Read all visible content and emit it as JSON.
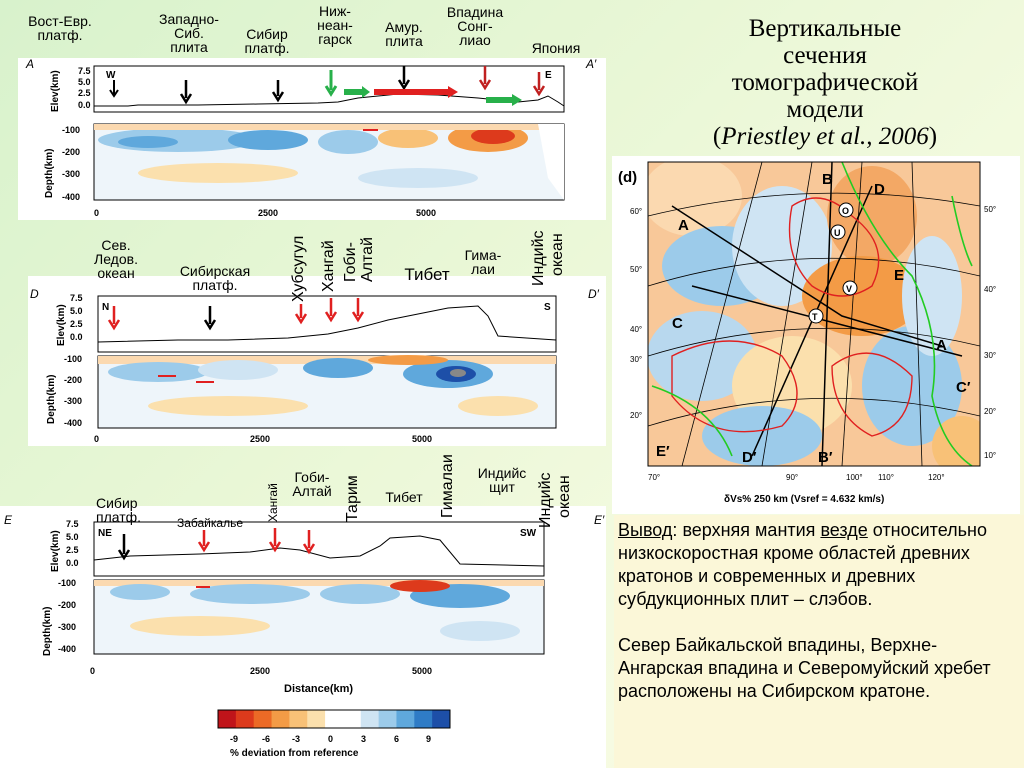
{
  "slide": {
    "title_line1": "Вертикальные",
    "title_line2": "сечения",
    "title_line3": "томографической",
    "title_line4": "модели",
    "title_cite": "Priestley et al., 2006"
  },
  "section_a": {
    "letter": "A",
    "letter_end": "A′",
    "dir_left": "W",
    "dir_right": "E",
    "labels": [
      "Вост-Евр.",
      "платф.",
      "Западно-",
      "Сиб.",
      "плита",
      "Сибир",
      "платф.",
      "Ниж-",
      "неан-",
      "гарск",
      "Амур.",
      "плита",
      "Впадина",
      "Сонг-",
      "лиао",
      "Япония"
    ]
  },
  "section_d": {
    "letter": "D",
    "letter_end": "D′",
    "dir_left": "N",
    "dir_right": "S",
    "labels": [
      "Сев.",
      "Ледов.",
      "океан",
      "Сибирская",
      "платф.",
      "Тибет",
      "Гима-",
      "лаи"
    ],
    "vertical_labels": [
      "Хубсугул",
      "Хангай",
      "Гоби-",
      "Алтай",
      "Индийс",
      "океан"
    ]
  },
  "section_e": {
    "letter": "E",
    "letter_end": "E′",
    "dir_left": "NE",
    "dir_right": "SW",
    "labels": [
      "Сибир",
      "платф.",
      "Забайкалье",
      "Гоби-",
      "Алтай",
      "Тибет",
      "Индийс",
      "щит"
    ],
    "vertical_labels": [
      "Хангай",
      "Тарим",
      "Гималаи",
      "Индийс",
      "океан"
    ]
  },
  "axes": {
    "elev_label": "Elev(km)",
    "depth_label": "Depth(km)",
    "distance_label": "Distance(km)",
    "elev_ticks": [
      "7.5",
      "5.0",
      "2.5",
      "0.0"
    ],
    "depth_ticks": [
      "-100",
      "-200",
      "-300",
      "-400"
    ],
    "distance_ticks": [
      "0",
      "2500",
      "5000"
    ]
  },
  "colorbar": {
    "ticks": [
      "-9",
      "-6",
      "-3",
      "0",
      "3",
      "6",
      "9"
    ],
    "label": "% deviation from reference",
    "colors": [
      "#c0141a",
      "#dd3a1c",
      "#ec6a26",
      "#f39b46",
      "#f8c177",
      "#fbe0ad",
      "#ffffff",
      "#ffffff",
      "#cfe4f3",
      "#9ccbea",
      "#5fa8dc",
      "#2f7cc6",
      "#1d4fa8"
    ]
  },
  "map": {
    "panel_letter": "(d)",
    "section_letters": [
      "A",
      "B",
      "D",
      "C",
      "E",
      "A",
      "C′",
      "E′",
      "D′",
      "B′"
    ],
    "station_letters": [
      "O",
      "U",
      "V",
      "T"
    ],
    "lat_ticks": [
      "60°",
      "50°",
      "40°",
      "30°",
      "20°"
    ],
    "lon_ticks": [
      "70°",
      "90°",
      "100°",
      "110°",
      "120°"
    ],
    "right_ticks": [
      "50°",
      "40°",
      "30°",
      "20°",
      "10°"
    ],
    "caption": "δVs% 250 km  (Vsref =   4.632   km/s)"
  },
  "conclusion": {
    "heading": "Вывод",
    "colon": ":",
    "text1_a": " верхняя мантия ",
    "text1_u": "везде",
    "text1_b": " относительно низкоскоростная кроме областей древних кратонов и современных и древних субдукционных плит – слэбов.",
    "text2": "Север Байкальской впадины, Верхне-Ангарская впадина и Северомуйский хребет расположены на Сибирском кратоне."
  }
}
